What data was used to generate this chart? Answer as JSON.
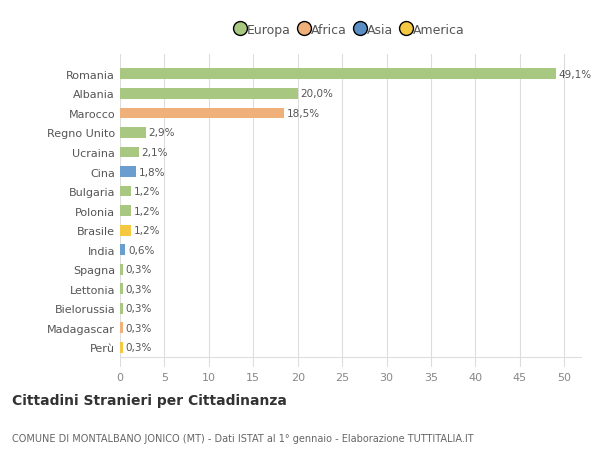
{
  "countries": [
    "Romania",
    "Albania",
    "Marocco",
    "Regno Unito",
    "Ucraina",
    "Cina",
    "Bulgaria",
    "Polonia",
    "Brasile",
    "India",
    "Spagna",
    "Lettonia",
    "Bielorussia",
    "Madagascar",
    "Perù"
  ],
  "values": [
    49.1,
    20.0,
    18.5,
    2.9,
    2.1,
    1.8,
    1.2,
    1.2,
    1.2,
    0.6,
    0.3,
    0.3,
    0.3,
    0.3,
    0.3
  ],
  "labels": [
    "49,1%",
    "20,0%",
    "18,5%",
    "2,9%",
    "2,1%",
    "1,8%",
    "1,2%",
    "1,2%",
    "1,2%",
    "0,6%",
    "0,3%",
    "0,3%",
    "0,3%",
    "0,3%",
    "0,3%"
  ],
  "colors": [
    "#a8c882",
    "#a8c882",
    "#f0b07a",
    "#a8c882",
    "#a8c882",
    "#6a9ecf",
    "#a8c882",
    "#a8c882",
    "#f5c842",
    "#6a9ecf",
    "#a8c882",
    "#a8c882",
    "#a8c882",
    "#f0b07a",
    "#f5c842"
  ],
  "continent_colors": {
    "Europa": "#a8c882",
    "Africa": "#f0b07a",
    "Asia": "#5b8ec4",
    "America": "#f5c842"
  },
  "xlim": [
    0,
    52
  ],
  "xticks": [
    0,
    5,
    10,
    15,
    20,
    25,
    30,
    35,
    40,
    45,
    50
  ],
  "title": "Cittadini Stranieri per Cittadinanza",
  "subtitle": "COMUNE DI MONTALBANO JONICO (MT) - Dati ISTAT al 1° gennaio - Elaborazione TUTTITALIA.IT",
  "bg_color": "#ffffff",
  "grid_color": "#dddddd",
  "bar_height": 0.55
}
